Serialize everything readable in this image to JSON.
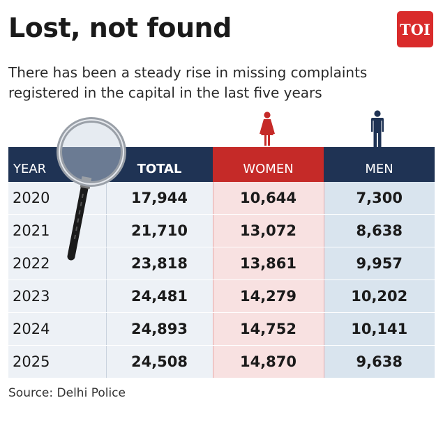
{
  "header": {
    "title": "Lost, not found",
    "subtitle": "There has been a steady rise in missing complaints registered in the capital in the last five years",
    "logo_text": "TOI",
    "logo_color": "#d92b2b"
  },
  "chart_data": {
    "type": "table",
    "title": "Lost, not found",
    "subtitle": "There has been a steady rise in missing complaints registered in the capital in the last five years",
    "columns": [
      "YEAR",
      "TOTAL",
      "WOMEN",
      "MEN"
    ],
    "rows": [
      {
        "year": "2020",
        "total": "17,944",
        "women": "10,644",
        "men": "7,300"
      },
      {
        "year": "2021",
        "total": "21,710",
        "women": "13,072",
        "men": "8,638"
      },
      {
        "year": "2022",
        "total": "23,818",
        "women": "13,861",
        "men": "9,957"
      },
      {
        "year": "2023",
        "total": "24,481",
        "women": "14,279",
        "men": "10,202"
      },
      {
        "year": "2024",
        "total": "24,893",
        "women": "14,752",
        "men": "10,141"
      },
      {
        "year": "2025",
        "total": "24,508",
        "women": "14,870",
        "men": "9,638"
      }
    ],
    "colors": {
      "header_navy": "#1f3354",
      "women_red": "#c52a28",
      "women_fill": "#f8e1e1",
      "men_fill": "#d9e4ee",
      "men_icon": "#1f3354"
    }
  },
  "footer": {
    "source": "Source: Delhi Police"
  },
  "icons": {
    "women": "woman-icon",
    "men": "man-icon",
    "decor": "magnifying-glass-icon"
  }
}
